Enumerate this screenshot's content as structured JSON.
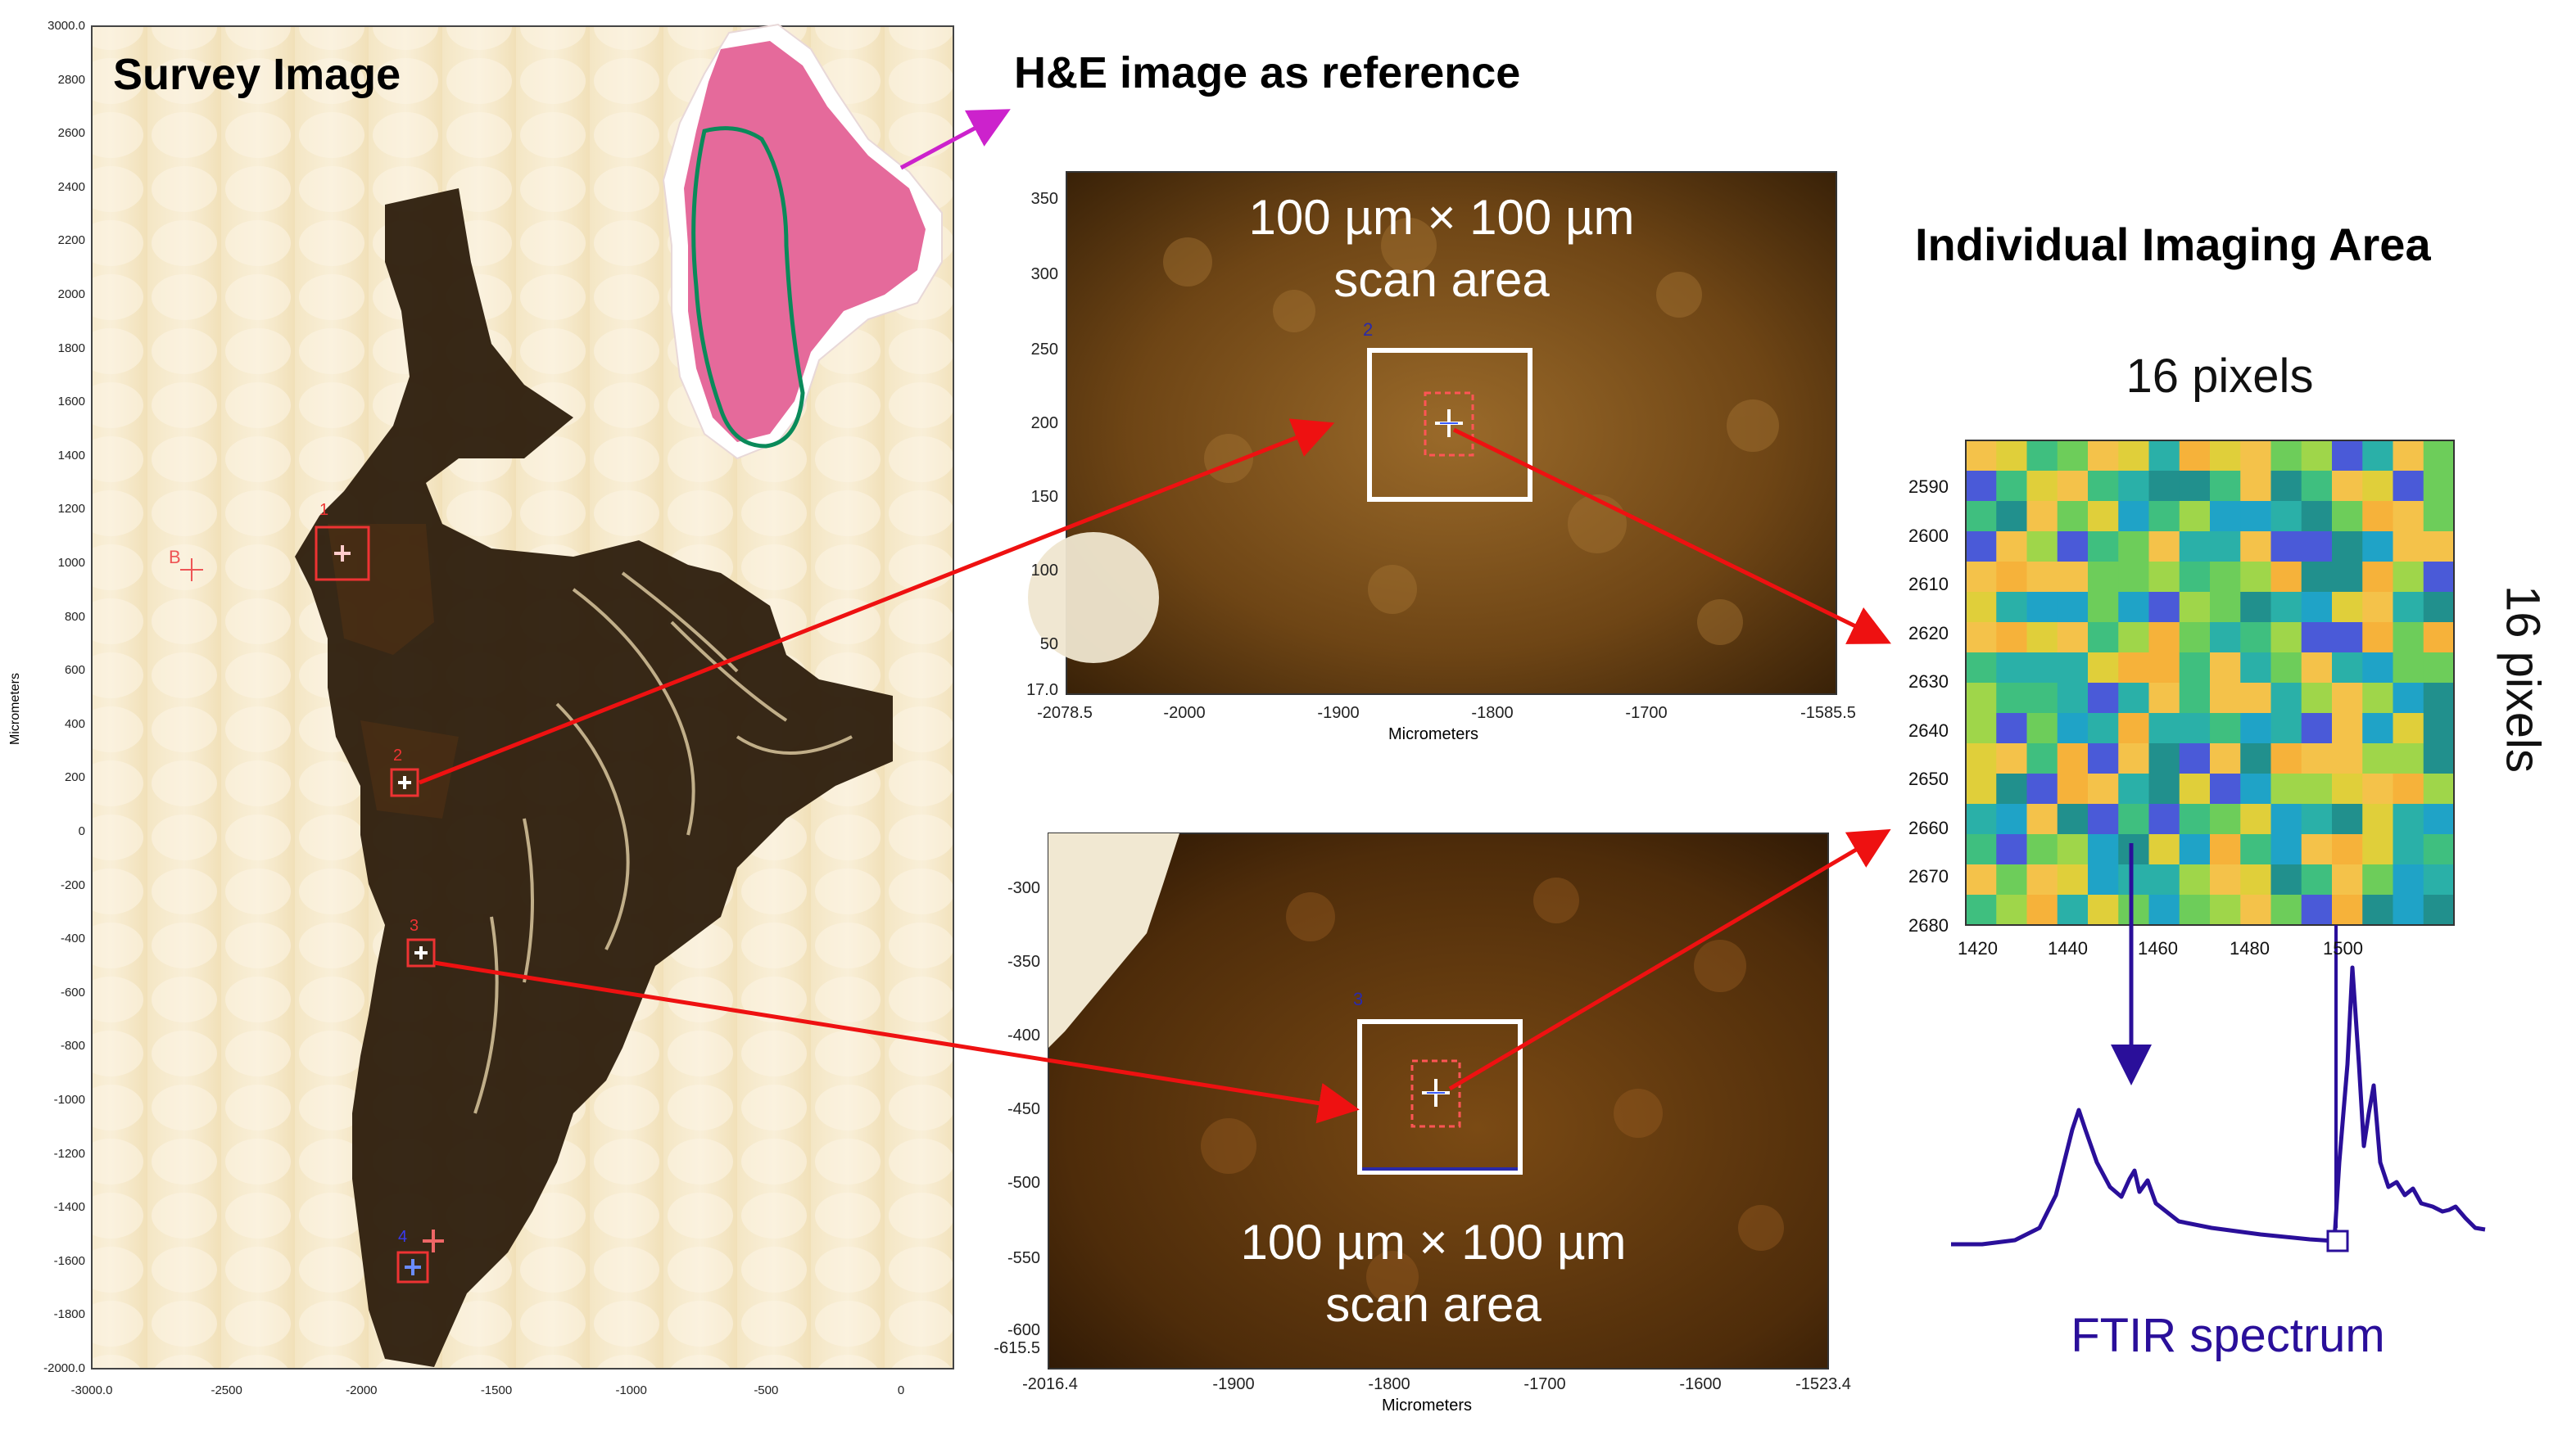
{
  "survey": {
    "title": "Survey Image",
    "y_axis_label": "Micrometers",
    "y_ticks": [
      "3000.0",
      "2800",
      "2600",
      "2400",
      "2200",
      "2000",
      "1800",
      "1600",
      "1400",
      "1200",
      "1000",
      "800",
      "600",
      "400",
      "200",
      "0",
      "-200",
      "-400",
      "-600",
      "-800",
      "-1000",
      "-1200",
      "-1400",
      "-1600",
      "-1800",
      "-2000.0"
    ],
    "x_ticks": [
      "-3000.0",
      "-2500",
      "-2000",
      "-1500",
      "-1000",
      "-500",
      "0"
    ],
    "markers": [
      {
        "label": "1"
      },
      {
        "label": "2"
      },
      {
        "label": "3"
      },
      {
        "label": "4"
      },
      {
        "label": "B"
      }
    ]
  },
  "he_reference": {
    "title": "H&E image as reference"
  },
  "micro_top": {
    "y_ticks": [
      "350",
      "300",
      "250",
      "200",
      "150",
      "100",
      "50",
      "17.0"
    ],
    "x_ticks": [
      "-2078.5",
      "-2000",
      "-1900",
      "-1800",
      "-1700",
      "-1585.5"
    ],
    "x_axis_label": "Micrometers",
    "scan_line1": "100 µm × 100 µm",
    "scan_line2": "scan area",
    "marker_number": "2"
  },
  "micro_bottom": {
    "y_ticks": [
      "-300",
      "-350",
      "-400",
      "-450",
      "-500",
      "-550",
      "-600",
      "-615.5"
    ],
    "x_ticks": [
      "-2016.4",
      "-1900",
      "-1800",
      "-1700",
      "-1600",
      "-1523.4"
    ],
    "x_axis_label": "Micrometers",
    "scan_line1": "100 µm × 100 µm",
    "scan_line2": "scan area",
    "marker_number": "3"
  },
  "imaging_area": {
    "title": "Individual Imaging Area",
    "top_label": "16 pixels",
    "side_label": "16 pixels",
    "y_ticks": [
      "2590",
      "2600",
      "2610",
      "2620",
      "2630",
      "2640",
      "2650",
      "2660",
      "2670",
      "2680"
    ],
    "x_ticks": [
      "1420",
      "1440",
      "1460",
      "1480",
      "1500"
    ],
    "grid_size": 16
  },
  "spectrum": {
    "label": "FTIR spectrum"
  },
  "colors": {
    "arrow": "#ee1111",
    "magenta_arrow": "#cc22cc",
    "spectrum": "#2a0f9a",
    "tissue_outline": "#0a8a5a"
  }
}
